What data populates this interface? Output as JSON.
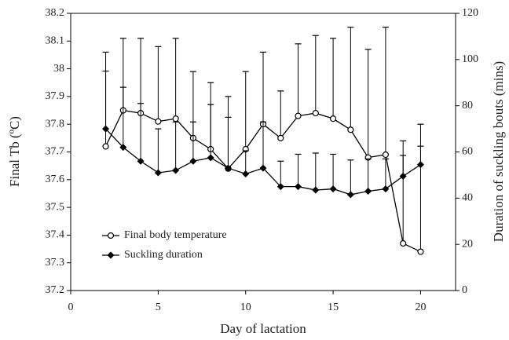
{
  "chart_data": {
    "type": "line",
    "xlabel": "Day of lactation",
    "ylabel": "Final Tb (ºC)",
    "y2label": "Duration of suckling bouts (mins)",
    "x": [
      2,
      3,
      4,
      5,
      6,
      7,
      8,
      9,
      10,
      11,
      12,
      13,
      14,
      15,
      16,
      17,
      18,
      19,
      20
    ],
    "series": [
      {
        "name": "Final body temperature",
        "color": "#000000",
        "marker": "circle",
        "axis": "y",
        "values": [
          37.72,
          37.85,
          37.84,
          37.81,
          37.82,
          37.75,
          37.71,
          37.64,
          37.71,
          37.8,
          37.75,
          37.83,
          37.84,
          37.82,
          37.78,
          37.68,
          37.69,
          37.37,
          37.34
        ],
        "errors": [
          0.34,
          0.26,
          0.27,
          0.27,
          0.29,
          0.24,
          0.24,
          0.26,
          0.28,
          0.26,
          0.17,
          0.26,
          0.28,
          0.29,
          0.37,
          0.39,
          0.46,
          0.37,
          0.46
        ]
      },
      {
        "name": "Suckling duration",
        "color": "#000000",
        "marker": "diamond",
        "axis": "y2",
        "values": [
          70,
          62,
          56,
          51,
          52,
          56,
          57.5,
          53,
          50.5,
          53,
          45,
          45,
          43.5,
          44,
          41.5,
          43,
          44,
          49.5,
          54.5
        ],
        "errors": [
          25,
          26,
          25,
          19,
          21,
          17,
          23,
          22,
          10,
          20,
          11,
          14,
          16,
          15,
          15,
          14,
          13,
          9,
          8
        ]
      }
    ],
    "xlim": [
      0,
      22
    ],
    "xticks": [
      0,
      5,
      10,
      15,
      20
    ],
    "ylim": [
      37.2,
      38.2
    ],
    "yticks": [
      37.2,
      37.3,
      37.4,
      37.5,
      37.6,
      37.7,
      37.8,
      37.9,
      38,
      38.1,
      38.2
    ],
    "y2lim": [
      0,
      120
    ],
    "y2ticks": [
      0,
      20,
      40,
      60,
      80,
      100,
      120
    ],
    "legend": "lower left",
    "grid": false
  }
}
